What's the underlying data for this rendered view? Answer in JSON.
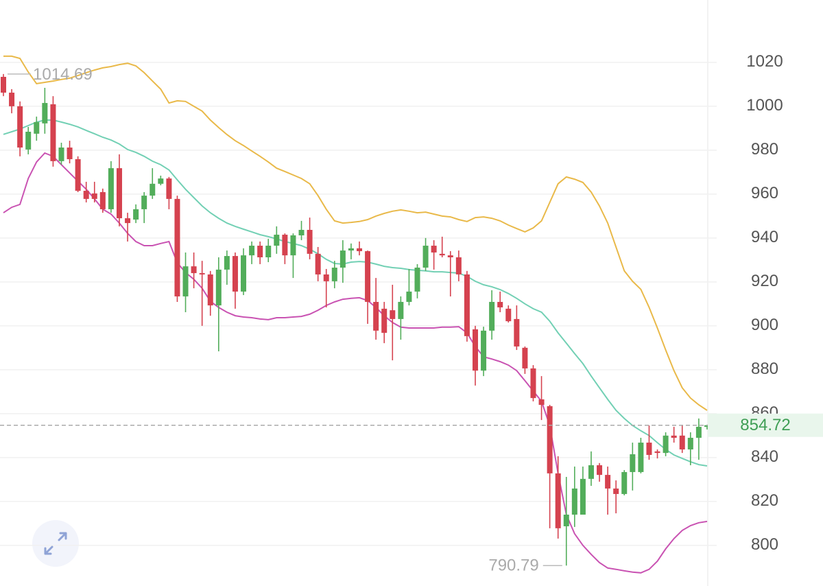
{
  "chart_data": {
    "type": "candlestick",
    "open": [
      1013.4,
      1006.2,
      1000,
      980.3,
      987.5,
      992.2,
      1000.9,
      975,
      981.2,
      975.9,
      961.5,
      960.3,
      960.9,
      953.1,
      971.8,
      949.0,
      948.4,
      953.1,
      959.3,
      964.7,
      967.1,
      957.8,
      913.4,
      927.1,
      924.0,
      923.4,
      909.3,
      925.6,
      931.8,
      915.6,
      932.1,
      936.5,
      931.2,
      936.5,
      941.5,
      932.1,
      941.2,
      943.7,
      932.8,
      923.4,
      920.3,
      926.5,
      934.3,
      935.3,
      934.0,
      910.9,
      907.8,
      907.1,
      903.1,
      910.9,
      915.6,
      926.5,
      936.5,
      932.8,
      932.1,
      931.2,
      923.4,
      898.4,
      879.6,
      897.8,
      910.9,
      907.8,
      903.1,
      890.0,
      880.6,
      866.5,
      863.4,
      832.8,
      808.7,
      814.0,
      814.0,
      830.3,
      836.5,
      832.1,
      825.9,
      823.4,
      833.4,
      833.4,
      846.8,
      842.8,
      842.1,
      850.0,
      850.0,
      843.7,
      849.0,
      854.0
    ],
    "high": [
      1014.69,
      1007.8,
      1002.2,
      990.6,
      995.3,
      1008.4,
      1004.6,
      983.4,
      984.3,
      977.2,
      965.6,
      965.6,
      962.5,
      975.0,
      978.1,
      951.5,
      955.3,
      960.9,
      971.8,
      968.4,
      967.8,
      959.3,
      933.4,
      933.4,
      929.6,
      925.0,
      931.2,
      934.3,
      933.4,
      935.3,
      938.4,
      938.4,
      939.6,
      945.3,
      942.1,
      942.1,
      947.8,
      949.3,
      935.9,
      925.9,
      929.6,
      939.0,
      937.5,
      938.4,
      934.3,
      921.8,
      910.9,
      918.7,
      913.4,
      925.9,
      928.1,
      940.0,
      939.0,
      940.6,
      934.0,
      934.3,
      925.0,
      900.0,
      899.6,
      916.2,
      915.6,
      909.3,
      909.3,
      890.6,
      882.1,
      877.1,
      864.0,
      840.6,
      831.2,
      835.9,
      835.9,
      842.8,
      837.5,
      835.9,
      829.6,
      834.3,
      846.8,
      849.0,
      854.6,
      843.7,
      851.5,
      854.0,
      854.6,
      851.5,
      857.8,
      855.0
    ],
    "low": [
      1004.6,
      996.8,
      977.2,
      978.1,
      984.3,
      987.5,
      972.5,
      973.4,
      974.0,
      960.9,
      956.2,
      956.2,
      951.5,
      951.5,
      945.3,
      938.4,
      946.8,
      946.8,
      957.8,
      964.0,
      953.1,
      910.9,
      906.2,
      917.1,
      900.0,
      904.6,
      888.4,
      918.7,
      907.8,
      914.0,
      928.1,
      928.1,
      929.0,
      932.8,
      928.1,
      921.8,
      939.0,
      930.3,
      920.3,
      908.4,
      917.1,
      919.6,
      930.3,
      932.1,
      900.9,
      893.7,
      892.1,
      884.3,
      893.7,
      909.3,
      912.5,
      925.0,
      925.6,
      931.2,
      913.4,
      920.3,
      892.8,
      872.8,
      877.1,
      893.7,
      906.2,
      901.5,
      889.0,
      878.1,
      865.6,
      857.1,
      807.8,
      803.1,
      790.79,
      808.4,
      814.0,
      827.1,
      829.0,
      814.0,
      814.6,
      822.8,
      825.0,
      832.8,
      839.0,
      839.6,
      840.6,
      846.8,
      842.1,
      836.5,
      839.0,
      852.8
    ],
    "close": [
      1006.2,
      1000.0,
      981.2,
      988.4,
      992.8,
      1001.5,
      975.0,
      981.2,
      975.9,
      961.5,
      957.8,
      957.8,
      953.1,
      971.8,
      949.0,
      946.8,
      953.1,
      959.3,
      964.7,
      967.1,
      957.8,
      913.4,
      927.1,
      924.0,
      923.4,
      909.3,
      925.6,
      931.8,
      915.6,
      932.1,
      936.5,
      931.2,
      936.5,
      941.5,
      932.1,
      941.2,
      943.7,
      932.8,
      923.4,
      920.3,
      926.5,
      934.3,
      935.3,
      934.0,
      910.9,
      897.8,
      896.8,
      903.1,
      910.9,
      915.6,
      926.5,
      936.5,
      933.4,
      932.1,
      931.2,
      923.4,
      895.3,
      879.6,
      897.8,
      910.9,
      908.4,
      902.1,
      890.6,
      880.6,
      867.1,
      864.0,
      832.8,
      807.8,
      814.0,
      825.9,
      830.3,
      836.5,
      832.1,
      825.9,
      823.4,
      833.4,
      841.5,
      846.8,
      841.2,
      842.1,
      850.0,
      849.0,
      843.7,
      849.0,
      854.0,
      854.72
    ],
    "up_color": "#52ad5a",
    "down_color": "#d5424f",
    "series": [
      {
        "color": "#e9b949",
        "values": [
          1022.8,
          1022.8,
          1021.8,
          1015.6,
          1010.3,
          1010.9,
          1011.5,
          1012.2,
          1012.8,
          1014.0,
          1015.3,
          1016.5,
          1017.5,
          1018.1,
          1019.0,
          1019.6,
          1018.4,
          1015.3,
          1011.5,
          1007.8,
          1001.5,
          1002.5,
          1002.2,
          1000.0,
          997.8,
          993.7,
          990.3,
          987.1,
          984.3,
          982.1,
          979.6,
          977.2,
          974.6,
          971.8,
          970.3,
          968.7,
          967.1,
          964.7,
          959.3,
          953.1,
          947.8,
          946.8,
          947.1,
          947.5,
          948.4,
          950.0,
          951.2,
          952.2,
          952.8,
          952.2,
          951.5,
          951.8,
          950.9,
          950.0,
          949.6,
          948.4,
          947.5,
          949.3,
          949.6,
          949.0,
          947.8,
          945.9,
          944.3,
          942.8,
          944.6,
          947.8,
          956.2,
          964.7,
          967.8,
          966.8,
          965.3,
          960.9,
          954.6,
          946.8,
          935.9,
          925.0,
          920.3,
          916.6,
          908.4,
          899.0,
          889.0,
          879.6,
          871.8,
          867.1,
          864.0,
          861.5
        ]
      },
      {
        "color": "#72d0b4",
        "values": [
          987.2,
          988.4,
          989.6,
          991.2,
          992.8,
          993.7,
          993.7,
          992.8,
          991.8,
          990.6,
          989.0,
          987.5,
          985.9,
          984.6,
          982.8,
          980.3,
          979.0,
          977.2,
          975.0,
          973.4,
          971.0,
          966.5,
          962.2,
          958.4,
          954.6,
          951.5,
          949.0,
          946.8,
          945.3,
          944.0,
          942.8,
          941.5,
          940.6,
          939.6,
          938.4,
          937.5,
          936.5,
          934.9,
          932.8,
          930.3,
          928.4,
          928.1,
          929.0,
          929.3,
          929.0,
          928.1,
          927.1,
          926.5,
          926.2,
          925.6,
          925.3,
          925.0,
          924.6,
          924.6,
          924.3,
          924.0,
          922.5,
          920.3,
          918.7,
          917.8,
          916.5,
          914.7,
          912.5,
          910.0,
          907.8,
          906.2,
          902.1,
          896.8,
          892.1,
          887.4,
          882.8,
          877.1,
          871.8,
          866.5,
          861.5,
          857.8,
          854.6,
          852.2,
          850.0,
          846.8,
          843.7,
          841.2,
          839.6,
          838.1,
          836.8,
          836.2
        ]
      },
      {
        "color": "#c952b2",
        "values": [
          951.5,
          954.0,
          955.3,
          967.1,
          974.6,
          978.7,
          977.2,
          973.4,
          969.6,
          965.9,
          962.2,
          957.8,
          953.1,
          950.9,
          946.8,
          942.1,
          938.4,
          936.5,
          936.5,
          937.5,
          938.4,
          928.7,
          924.3,
          921.2,
          917.1,
          911.2,
          908.4,
          906.2,
          904.6,
          904.0,
          903.7,
          903.1,
          902.8,
          903.7,
          903.7,
          904.0,
          904.3,
          905.3,
          907.1,
          909.3,
          910.9,
          912.1,
          912.5,
          912.8,
          911.5,
          908.4,
          904.6,
          901.5,
          899.4,
          899.0,
          899.0,
          899.0,
          899.0,
          899.4,
          899.4,
          899.6,
          896.8,
          890.6,
          885.9,
          884.9,
          883.7,
          882.1,
          879.6,
          875.0,
          870.3,
          865.6,
          854.6,
          832.8,
          814.0,
          805.3,
          800.0,
          795.9,
          792.2,
          789.7,
          789.1,
          788.4,
          787.8,
          787.5,
          789.1,
          792.8,
          798.4,
          803.1,
          806.8,
          809.0,
          810.3,
          810.9
        ]
      }
    ],
    "ylim": [
      781.5,
      1048.4
    ],
    "yticks": [
      800,
      820,
      840,
      860,
      880,
      900,
      920,
      940,
      960,
      980,
      1000,
      1020
    ],
    "grid": true
  }
}
